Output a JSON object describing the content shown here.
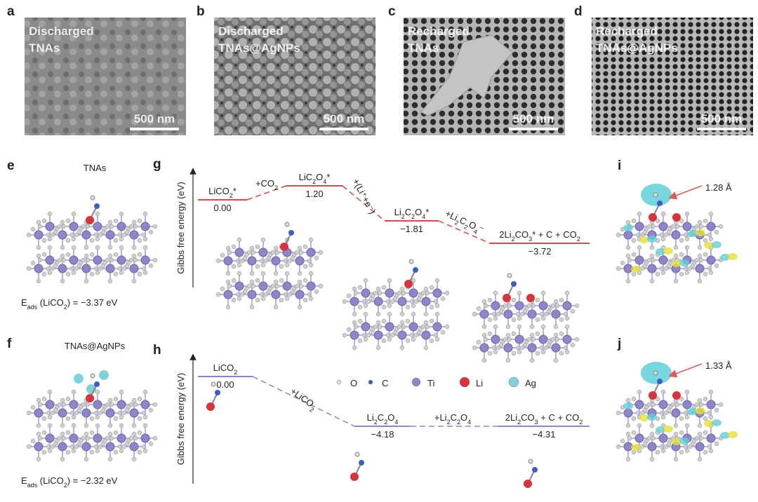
{
  "sem": [
    {
      "letter": "a",
      "caption": [
        "Discharged",
        "TNAs"
      ],
      "scale_bar": "500 nm"
    },
    {
      "letter": "b",
      "caption": [
        "Discharged",
        "TNAs@AgNPs"
      ],
      "scale_bar": "500 nm"
    },
    {
      "letter": "c",
      "caption": [
        "Recharged",
        "TNAs"
      ],
      "scale_bar": "500 nm"
    },
    {
      "letter": "d",
      "caption": [
        "Recharged",
        "TNAs@AgNPs"
      ],
      "scale_bar": "500 nm"
    }
  ],
  "adsorption": [
    {
      "letter": "e",
      "title": "TNAs",
      "energy": [
        "E",
        "ads",
        " (LiCO",
        "2",
        ") = −3.37 eV"
      ]
    },
    {
      "letter": "f",
      "title": "TNAs@AgNPs",
      "energy": [
        "E",
        "ads",
        " (LiCO",
        "2",
        ") = −2.32 eV"
      ]
    }
  ],
  "diagrams": [
    {
      "letter": "g",
      "axis_label": "Gibbs free energy (eV)",
      "states": [
        {
          "name": [
            "LiCO",
            "2",
            "*"
          ],
          "value": "0.00"
        },
        {
          "name": [
            "LiC",
            "2",
            "O",
            "4",
            "*"
          ],
          "value": "1.20"
        },
        {
          "name": [
            "Li",
            "2",
            "C",
            "2",
            "O",
            "4",
            "*"
          ],
          "value": "−1.81"
        },
        {
          "name": [
            "2Li",
            "2",
            "CO",
            "3",
            "* + C + CO",
            "2"
          ],
          "value": "−3.72"
        }
      ],
      "steps": [
        [
          "+CO",
          "2"
        ],
        [
          "+(Li⁺+e⁻)"
        ],
        [
          "+Li",
          "2",
          "C",
          "2",
          "O",
          "4",
          "⁻"
        ]
      ]
    },
    {
      "letter": "h",
      "axis_label": "Gibbs free energy (eV)",
      "states": [
        {
          "name": [
            "LiCO",
            "2"
          ],
          "value": "0.00"
        },
        {
          "name": [
            "Li",
            "2",
            "C",
            "2",
            "O",
            "4"
          ],
          "value": "−4.18"
        },
        {
          "name": [
            "2Li",
            "2",
            "CO",
            "3",
            " + C + CO",
            "2"
          ],
          "value": "−4.31"
        }
      ],
      "steps": [
        [
          "+LiCO",
          "2"
        ],
        [
          "+Li",
          "2",
          "C",
          "2",
          "O",
          "4"
        ]
      ]
    }
  ],
  "legend": [
    "O",
    "C",
    "Ti",
    "Li",
    "Ag"
  ],
  "charge_density": [
    {
      "letter": "i",
      "bond": "1.28 Å"
    },
    {
      "letter": "j",
      "bond": "1.33 Å"
    }
  ]
}
